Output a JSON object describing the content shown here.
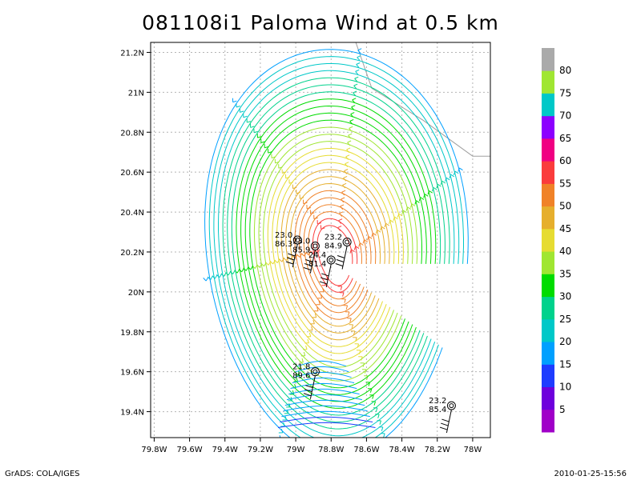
{
  "title": "081108i1 Paloma Wind at 0.5 km",
  "footer_left": "GrADS: COLA/IGES",
  "footer_right": "2010-01-25-15:56",
  "chart_data": {
    "type": "streamline",
    "title": "081108i1 Paloma Wind at 0.5 km",
    "x_ticks": [
      "79.8W",
      "79.6W",
      "79.4W",
      "79.2W",
      "79W",
      "78.8W",
      "78.6W",
      "78.4W",
      "78.2W",
      "78W"
    ],
    "y_ticks": [
      "19.4N",
      "19.6N",
      "19.8N",
      "20N",
      "20.2N",
      "20.4N",
      "20.6N",
      "20.8N",
      "21N",
      "21.2N"
    ],
    "xlim": [
      -79.82,
      -77.9
    ],
    "ylim": [
      19.27,
      21.25
    ],
    "grid": true,
    "colorbar": {
      "labels": [
        "5",
        "10",
        "15",
        "20",
        "25",
        "30",
        "35",
        "40",
        "45",
        "50",
        "55",
        "60",
        "65",
        "70",
        "75",
        "80"
      ],
      "colors": [
        "#a000c8",
        "#6e00dc",
        "#1e3cff",
        "#00a0ff",
        "#00c8c8",
        "#00d28c",
        "#00dc00",
        "#a0e632",
        "#e6dc32",
        "#e6af2d",
        "#f08228",
        "#fa3c3c",
        "#f00082",
        "#8c00ff",
        "#00c8c8",
        "#a0e632",
        "#aaaaaa"
      ]
    },
    "center": {
      "lon": -78.78,
      "lat": 20.18
    },
    "observations": [
      {
        "lon": -78.99,
        "lat": 20.26,
        "label1": "23.0",
        "label2": "86.3"
      },
      {
        "lon": -78.89,
        "lat": 20.23,
        "label1": "23.0",
        "label2": "85.9"
      },
      {
        "lon": -78.71,
        "lat": 20.25,
        "label1": "23.2",
        "label2": "84.9"
      },
      {
        "lon": -78.8,
        "lat": 20.16,
        "label1": "24.4",
        "label2": "81.4"
      },
      {
        "lon": -78.89,
        "lat": 19.6,
        "label1": "21.8",
        "label2": "89.6"
      },
      {
        "lon": -78.12,
        "lat": 19.43,
        "label1": "23.2",
        "label2": "85.4"
      }
    ]
  }
}
